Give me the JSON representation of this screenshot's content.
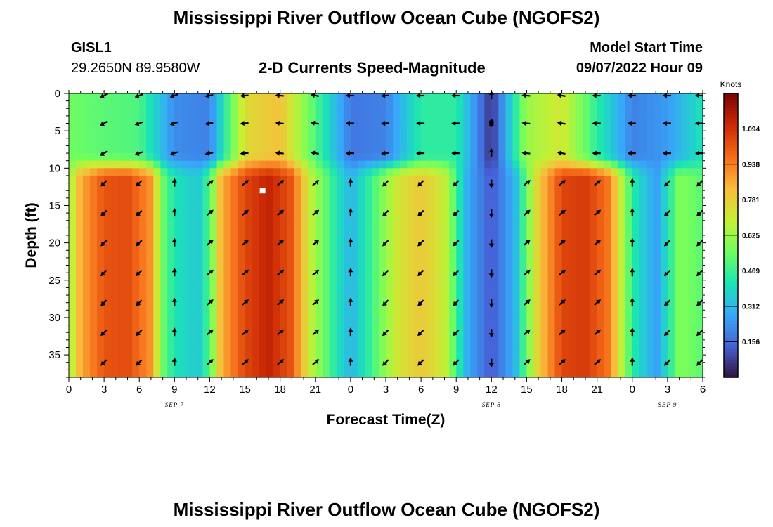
{
  "page": {
    "title": "Mississippi River Outflow Ocean Cube (NGOFS2)",
    "title_repeat": "Mississippi River Outflow Ocean Cube (NGOFS2)",
    "station": "GISL1",
    "coords": "29.2650N  89.9580W",
    "subtitle": "2-D Currents Speed-Magnitude",
    "model_start_label": "Model Start Time",
    "model_start_value": "09/07/2022 Hour 09"
  },
  "chart_data": {
    "type": "heatmap",
    "title": "2-D Currents Speed-Magnitude",
    "xlabel": "Forecast Time(Z)",
    "ylabel": "Depth (ft)",
    "x_ticks": [
      "0",
      "3",
      "6",
      "9",
      "12",
      "15",
      "18",
      "21",
      "0",
      "3",
      "6",
      "9",
      "12",
      "15",
      "18",
      "21",
      "0",
      "3",
      "6"
    ],
    "x_range_hours": [
      0,
      54
    ],
    "date_labels": [
      {
        "text": "SEP 7",
        "hour": 9
      },
      {
        "text": "SEP 8",
        "hour": 36
      },
      {
        "text": "SEP 9",
        "hour": 51
      }
    ],
    "y_ticks": [
      "0",
      "5",
      "10",
      "15",
      "20",
      "25",
      "30",
      "35"
    ],
    "y_range": [
      0,
      38
    ],
    "y_inverted": true,
    "colorbar": {
      "label": "Knots",
      "range": [
        0,
        1.25
      ],
      "tick_values": [
        0.156,
        0.312,
        0.469,
        0.625,
        0.781,
        0.938,
        1.094
      ],
      "tick_labels": [
        "0.156",
        "0.312",
        "0.469",
        "0.625",
        "0.781",
        "0.938",
        "1.094"
      ]
    },
    "colormap": [
      "#30123b",
      "#4662d7",
      "#36aaf9",
      "#1ae4b6",
      "#72fe5e",
      "#c7ef34",
      "#fabb3b",
      "#f66b19",
      "#cb2a04",
      "#7a0403"
    ],
    "surface_layer": {
      "depths": [
        0,
        4,
        8
      ],
      "hours": [
        0,
        3,
        6,
        9,
        12,
        15,
        18,
        21,
        24,
        27,
        30,
        33,
        36,
        39,
        42,
        45,
        48,
        51,
        54
      ],
      "speed": [
        0.55,
        0.52,
        0.5,
        0.22,
        0.2,
        0.75,
        0.82,
        0.5,
        0.18,
        0.2,
        0.45,
        0.45,
        0.05,
        0.62,
        0.72,
        0.45,
        0.2,
        0.25,
        0.42
      ]
    },
    "lower_layer": {
      "depth_range": [
        10,
        38
      ],
      "hours": [
        0,
        1,
        3,
        5,
        7,
        8,
        9,
        11,
        12,
        13,
        15,
        17,
        19,
        20,
        21,
        23,
        24,
        26,
        28,
        30,
        32,
        33,
        34,
        36,
        38,
        40,
        42,
        44,
        46,
        48,
        50,
        52,
        54
      ],
      "speed": [
        0.62,
        0.86,
        1.02,
        1.04,
        0.9,
        0.55,
        0.42,
        0.35,
        0.5,
        0.85,
        1.05,
        1.13,
        1.02,
        0.8,
        0.62,
        0.4,
        0.3,
        0.5,
        0.72,
        0.8,
        0.7,
        0.48,
        0.28,
        0.12,
        0.3,
        0.78,
        1.05,
        1.08,
        0.95,
        0.45,
        0.25,
        0.58,
        0.52
      ]
    },
    "arrows": {
      "depths": [
        0,
        4,
        8,
        12,
        16,
        20,
        24,
        28,
        32,
        36
      ],
      "hours": [
        3,
        6,
        9,
        12,
        15,
        18,
        21,
        24,
        27,
        30,
        33,
        36,
        39,
        42,
        45,
        48,
        51,
        54
      ],
      "surface_angles_deg": [
        210,
        200,
        200,
        190,
        185,
        175,
        170,
        180,
        185,
        180,
        180,
        90,
        175,
        170,
        180,
        180,
        180,
        180
      ],
      "lower_angles_deg": [
        225,
        225,
        90,
        40,
        40,
        40,
        40,
        90,
        225,
        225,
        225,
        270,
        40,
        40,
        40,
        90,
        225,
        225
      ]
    },
    "annotations": [
      {
        "type": "marker",
        "hour": 16.5,
        "depth": 13,
        "color": "#ffffff"
      },
      {
        "type": "marker",
        "hour": 36,
        "depth": 4,
        "color": "#000000"
      }
    ]
  }
}
